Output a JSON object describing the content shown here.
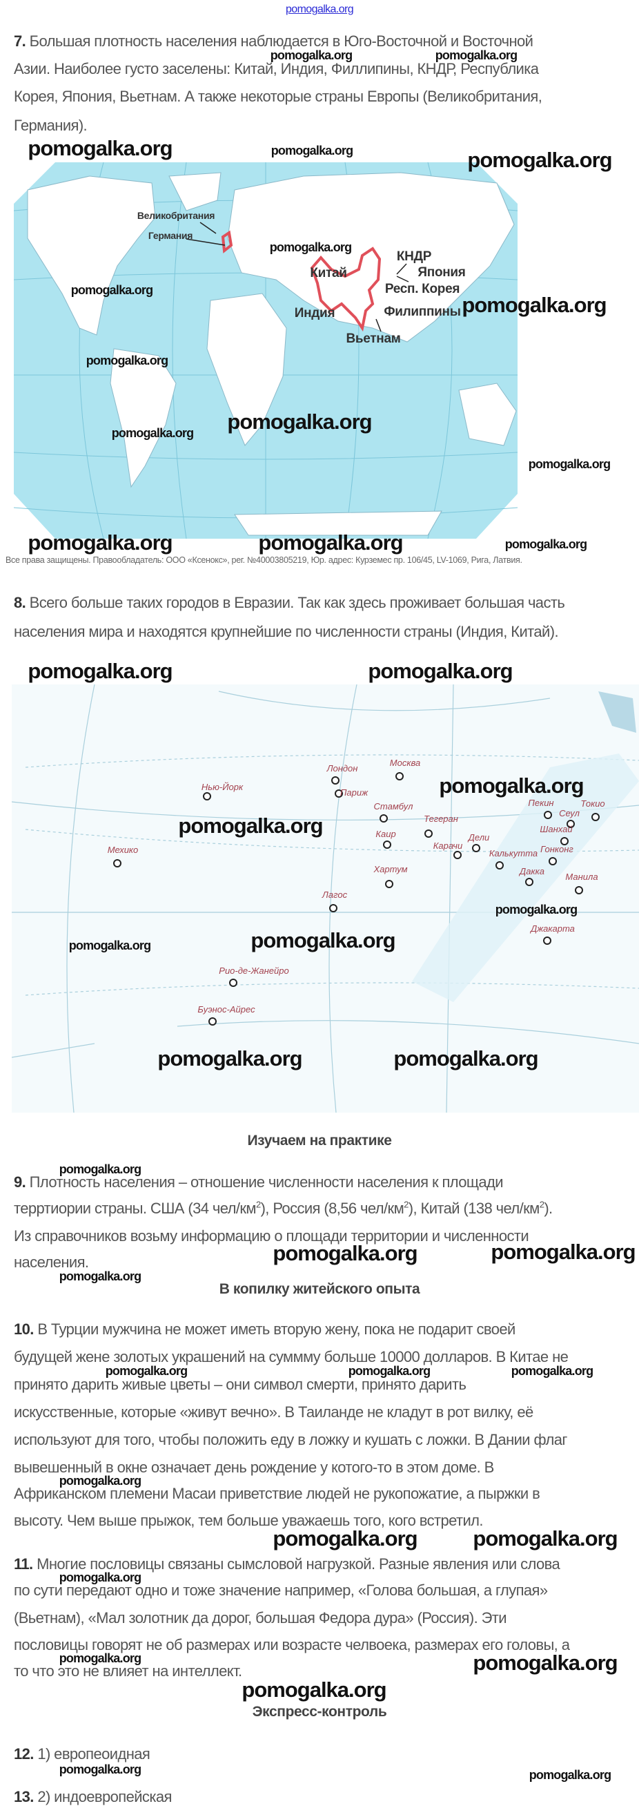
{
  "site_link": "pomogalka.org",
  "watermark": "pomogalka.org",
  "colors": {
    "text": "#555555",
    "map_ocean": "#aee4f0",
    "highlight_border": "#e0505a",
    "city_label": "#a3424e",
    "link": "#2b2bd6"
  },
  "q7": {
    "number": "7.",
    "lines": [
      "Большая плотность населения наблюдается в Юго-Восточной и Восточной",
      "Азии. Наиболее густо заселены: Китай, Индия, Филлипины, КНДР, Республика",
      "Корея, Япония, Вьетнам. А также некоторые страны Европы (Великобритания,",
      "Германия)."
    ]
  },
  "map1": {
    "labels": [
      "Великобритания",
      "Германия",
      "Китай",
      "КНДР",
      "Япония",
      "Респ. Корея",
      "Индия",
      "Филиппины",
      "Вьетнам"
    ],
    "copyright": "Все права защищены. Правообладатель: ООО «Ксенокс», рег. №40003805219, Юр. адрес: Курземес пр. 106/45, LV-1069, Рига, Латвия."
  },
  "q8": {
    "number": "8.",
    "lines": [
      "Всего больше таких городов в Евразии. Так как здесь проживает большая часть",
      "населения мира и находятся крупнейшие по численности страны (Индия, Китай)."
    ]
  },
  "map2": {
    "cities": [
      "Лондон",
      "Москва",
      "Париж",
      "Нью-Йорк",
      "Стамбул",
      "Тегеран",
      "Каир",
      "Дели",
      "Карачи",
      "Калькутта",
      "Пекин",
      "Сеул",
      "Токио",
      "Шанхай",
      "Гонконг",
      "Дакка",
      "Манила",
      "Хартум",
      "Лагос",
      "Мехико",
      "Джакарта",
      "Рио-де-Жанейро",
      "Буэнос-Айрес"
    ]
  },
  "section_practice": "Изучаем на практике",
  "q9": {
    "number": "9.",
    "line1": "Плотность населения – отношение численности населения к площади",
    "line2": [
      "терртиории страны. США (34 чел/км",
      "2",
      "), Россия (8,56 чел/км",
      "2",
      "), Китай (138 чел/км",
      "2",
      ")."
    ],
    "line3": "Из справочников возьму информацию о площади территории и численности",
    "line4": "населения."
  },
  "section_experience": "В копилку житейского опыта",
  "q10": {
    "number": "10.",
    "lines": [
      "В Турции мужчина не может иметь вторую жену, пока не подарит своей",
      "будущей жене золотых украшений на сумммy больше 10000 долларов. В Китае не",
      "принято дарить живые цветы – они символ смерти, принято дарить",
      "искусственные, которые «живут вечно». В Таиланде не кладут в рот вилку, её",
      "используют для того, чтобы положить еду в ложку и кушать с ложки. В Дании флаг",
      "вывешенный в окне означает день рождение у котого-то в этом доме. В",
      "Африканском племени Масаи приветствие людей не рукопожатие, а пыржки в",
      "высоту. Чем выше прыжок, тем больше уважаешь того, кого встретил."
    ]
  },
  "q11": {
    "number": "11.",
    "lines": [
      "Многие пословицы связаны сымсловой нагрузкой. Разные явления или слова",
      "по сути передают одно и тоже значение например, «Голова большая, а глупая»",
      "(Вьетнам), «Мал золотник да дорог, большая Федора дура» (Россия). Эти",
      "пословицы говорят не об размерах или возрасте челвоека, размерах его головы, а",
      "то что это не влияет на интеллект."
    ]
  },
  "section_express": "Экспресс-контроль",
  "q12": {
    "number": "12.",
    "answer": "1) европеоидная"
  },
  "q13": {
    "number": "13.",
    "answer": "2) индоевропейская"
  }
}
